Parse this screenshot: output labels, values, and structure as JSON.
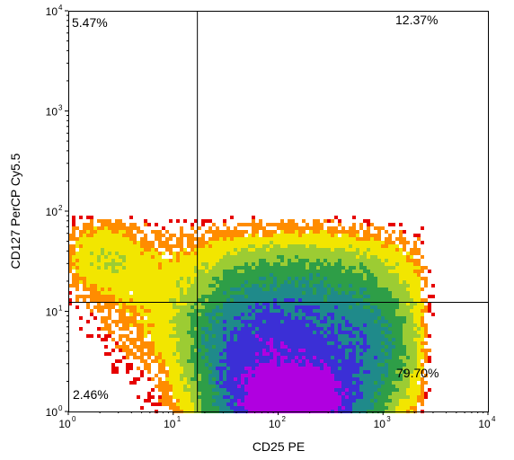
{
  "chart_data": {
    "type": "scatter",
    "subtype": "flow-cytometry-density-dot-plot",
    "xlabel": "CD25 PE",
    "ylabel": "CD127 PerCP Cy5.5",
    "x_scale": "log10",
    "y_scale": "log10",
    "xlim": [
      1,
      10000
    ],
    "ylim": [
      1,
      10000
    ],
    "x_ticks": [
      {
        "base": "10",
        "exp": "0",
        "value": 1
      },
      {
        "base": "10",
        "exp": "1",
        "value": 10
      },
      {
        "base": "10",
        "exp": "2",
        "value": 100
      },
      {
        "base": "10",
        "exp": "3",
        "value": 1000
      },
      {
        "base": "10",
        "exp": "4",
        "value": 10000
      }
    ],
    "y_ticks": [
      {
        "base": "10",
        "exp": "0",
        "value": 1
      },
      {
        "base": "10",
        "exp": "1",
        "value": 10
      },
      {
        "base": "10",
        "exp": "2",
        "value": 100
      },
      {
        "base": "10",
        "exp": "3",
        "value": 1000
      },
      {
        "base": "10",
        "exp": "4",
        "value": 10000
      }
    ],
    "gate": {
      "x": 17,
      "y": 12.3
    },
    "quadrants": [
      {
        "name": "upper-left",
        "label": "5.47%"
      },
      {
        "name": "upper-right",
        "label": "12.37%"
      },
      {
        "name": "lower-left",
        "label": "2.46%"
      },
      {
        "name": "lower-right",
        "label": "79.70%"
      }
    ],
    "colormap": [
      "#e60000",
      "#ff8c00",
      "#f2e600",
      "#9ccc33",
      "#2e9e47",
      "#1f8a8a",
      "#3b2fd6",
      "#b000e0"
    ],
    "grid": false
  }
}
